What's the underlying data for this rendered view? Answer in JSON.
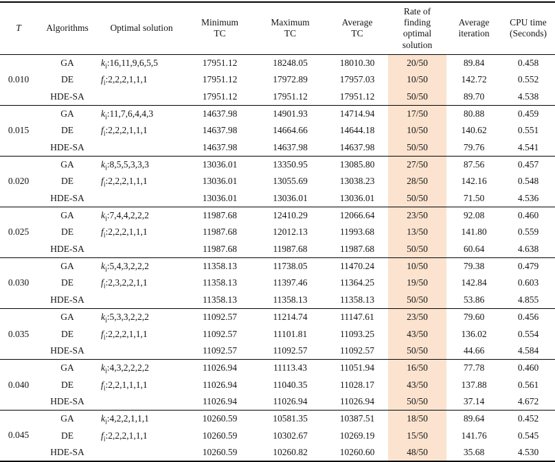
{
  "colors": {
    "highlight": "#fbe3cf",
    "border": "#000000",
    "text": "#141414"
  },
  "header": {
    "columns": [
      {
        "label": "T"
      },
      {
        "label": "Algorithms"
      },
      {
        "label": "Optimal solution"
      },
      {
        "label": "Minimum\nTC"
      },
      {
        "label": "Maximum\nTC"
      },
      {
        "label": "Average\nTC"
      },
      {
        "label": "Rate of\nfinding\noptimal\nsolution"
      },
      {
        "label": "Average\niteration"
      },
      {
        "label": "CPU time\n(Seconds)"
      }
    ]
  },
  "groups": [
    {
      "t": "0.010",
      "rows": [
        {
          "algorithm": "GA",
          "optimal": {
            "var": "k",
            "sub": "i",
            "rest": ":16,11,9,6,5,5"
          },
          "min_tc": "17951.12",
          "max_tc": "18248.05",
          "avg_tc": "18010.30",
          "rate": "20/50",
          "avg_iteration": "89.84",
          "cpu_time": "0.458"
        },
        {
          "algorithm": "DE",
          "optimal": {
            "var": "f",
            "sub": "i",
            "rest": ":2,2,2,1,1,1"
          },
          "min_tc": "17951.12",
          "max_tc": "17972.89",
          "avg_tc": "17957.03",
          "rate": "10/50",
          "avg_iteration": "142.72",
          "cpu_time": "0.552"
        },
        {
          "algorithm": "HDE-SA",
          "optimal": {
            "var": "",
            "sub": "",
            "rest": ""
          },
          "min_tc": "17951.12",
          "max_tc": "17951.12",
          "avg_tc": "17951.12",
          "rate": "50/50",
          "avg_iteration": "89.70",
          "cpu_time": "4.538"
        }
      ]
    },
    {
      "t": "0.015",
      "rows": [
        {
          "algorithm": "GA",
          "optimal": {
            "var": "k",
            "sub": "i",
            "rest": ":11,7,6,4,4,3"
          },
          "min_tc": "14637.98",
          "max_tc": "14901.93",
          "avg_tc": "14714.94",
          "rate": "17/50",
          "avg_iteration": "80.88",
          "cpu_time": "0.459"
        },
        {
          "algorithm": "DE",
          "optimal": {
            "var": "f",
            "sub": "i",
            "rest": ":2,2,2,1,1,1"
          },
          "min_tc": "14637.98",
          "max_tc": "14664.66",
          "avg_tc": "14644.18",
          "rate": "10/50",
          "avg_iteration": "140.62",
          "cpu_time": "0.551"
        },
        {
          "algorithm": "HDE-SA",
          "optimal": {
            "var": "",
            "sub": "",
            "rest": ""
          },
          "min_tc": "14637.98",
          "max_tc": "14637.98",
          "avg_tc": "14637.98",
          "rate": "50/50",
          "avg_iteration": "79.76",
          "cpu_time": "4.541"
        }
      ]
    },
    {
      "t": "0.020",
      "rows": [
        {
          "algorithm": "GA",
          "optimal": {
            "var": "k",
            "sub": "i",
            "rest": ":8,5,5,3,3,3"
          },
          "min_tc": "13036.01",
          "max_tc": "13350.95",
          "avg_tc": "13085.80",
          "rate": "27/50",
          "avg_iteration": "87.56",
          "cpu_time": "0.457"
        },
        {
          "algorithm": "DE",
          "optimal": {
            "var": "f",
            "sub": "i",
            "rest": ":2,2,2,1,1,1"
          },
          "min_tc": "13036.01",
          "max_tc": "13055.69",
          "avg_tc": "13038.23",
          "rate": "28/50",
          "avg_iteration": "142.16",
          "cpu_time": "0.548"
        },
        {
          "algorithm": "HDE-SA",
          "optimal": {
            "var": "",
            "sub": "",
            "rest": ""
          },
          "min_tc": "13036.01",
          "max_tc": "13036.01",
          "avg_tc": "13036.01",
          "rate": "50/50",
          "avg_iteration": "71.50",
          "cpu_time": "4.536"
        }
      ]
    },
    {
      "t": "0.025",
      "rows": [
        {
          "algorithm": "GA",
          "optimal": {
            "var": "k",
            "sub": "i",
            "rest": ":7,4,4,2,2,2"
          },
          "min_tc": "11987.68",
          "max_tc": "12410.29",
          "avg_tc": "12066.64",
          "rate": "23/50",
          "avg_iteration": "92.08",
          "cpu_time": "0.460"
        },
        {
          "algorithm": "DE",
          "optimal": {
            "var": "f",
            "sub": "i",
            "rest": ":2,2,2,1,1,1"
          },
          "min_tc": "11987.68",
          "max_tc": "12012.13",
          "avg_tc": "11993.68",
          "rate": "13/50",
          "avg_iteration": "141.80",
          "cpu_time": "0.559"
        },
        {
          "algorithm": "HDE-SA",
          "optimal": {
            "var": "",
            "sub": "",
            "rest": ""
          },
          "min_tc": "11987.68",
          "max_tc": "11987.68",
          "avg_tc": "11987.68",
          "rate": "50/50",
          "avg_iteration": "60.64",
          "cpu_time": "4.638"
        }
      ]
    },
    {
      "t": "0.030",
      "rows": [
        {
          "algorithm": "GA",
          "optimal": {
            "var": "k",
            "sub": "i",
            "rest": ":5,4,3,2,2,2"
          },
          "min_tc": "11358.13",
          "max_tc": "11738.05",
          "avg_tc": "11470.24",
          "rate": "10/50",
          "avg_iteration": "79.38",
          "cpu_time": "0.479"
        },
        {
          "algorithm": "DE",
          "optimal": {
            "var": "f",
            "sub": "i",
            "rest": ":2,3,2,2,1,1"
          },
          "min_tc": "11358.13",
          "max_tc": "11397.46",
          "avg_tc": "11364.25",
          "rate": "19/50",
          "avg_iteration": "142.84",
          "cpu_time": "0.603"
        },
        {
          "algorithm": "HDE-SA",
          "optimal": {
            "var": "",
            "sub": "",
            "rest": ""
          },
          "min_tc": "11358.13",
          "max_tc": "11358.13",
          "avg_tc": "11358.13",
          "rate": "50/50",
          "avg_iteration": "53.86",
          "cpu_time": "4.855"
        }
      ]
    },
    {
      "t": "0.035",
      "rows": [
        {
          "algorithm": "GA",
          "optimal": {
            "var": "k",
            "sub": "i",
            "rest": ":5,3,3,2,2,2"
          },
          "min_tc": "11092.57",
          "max_tc": "11214.74",
          "avg_tc": "11147.61",
          "rate": "23/50",
          "avg_iteration": "79.60",
          "cpu_time": "0.456"
        },
        {
          "algorithm": "DE",
          "optimal": {
            "var": "f",
            "sub": "i",
            "rest": ":2,2,2,1,1,1"
          },
          "min_tc": "11092.57",
          "max_tc": "11101.81",
          "avg_tc": "11093.25",
          "rate": "43/50",
          "avg_iteration": "136.02",
          "cpu_time": "0.554"
        },
        {
          "algorithm": "HDE-SA",
          "optimal": {
            "var": "",
            "sub": "",
            "rest": ""
          },
          "min_tc": "11092.57",
          "max_tc": "11092.57",
          "avg_tc": "11092.57",
          "rate": "50/50",
          "avg_iteration": "44.66",
          "cpu_time": "4.584"
        }
      ]
    },
    {
      "t": "0.040",
      "rows": [
        {
          "algorithm": "GA",
          "optimal": {
            "var": "k",
            "sub": "i",
            "rest": ":4,3,2,2,2,2"
          },
          "min_tc": "11026.94",
          "max_tc": "11113.43",
          "avg_tc": "11051.94",
          "rate": "16/50",
          "avg_iteration": "77.78",
          "cpu_time": "0.460"
        },
        {
          "algorithm": "DE",
          "optimal": {
            "var": "f",
            "sub": "i",
            "rest": ":2,2,1,1,1,1"
          },
          "min_tc": "11026.94",
          "max_tc": "11040.35",
          "avg_tc": "11028.17",
          "rate": "43/50",
          "avg_iteration": "137.88",
          "cpu_time": "0.561"
        },
        {
          "algorithm": "HDE-SA",
          "optimal": {
            "var": "",
            "sub": "",
            "rest": ""
          },
          "min_tc": "11026.94",
          "max_tc": "11026.94",
          "avg_tc": "11026.94",
          "rate": "50/50",
          "avg_iteration": "37.14",
          "cpu_time": "4.672"
        }
      ]
    },
    {
      "t": "0.045",
      "rows": [
        {
          "algorithm": "GA",
          "optimal": {
            "var": "k",
            "sub": "i",
            "rest": ":4,2,2,1,1,1"
          },
          "min_tc": "10260.59",
          "max_tc": "10581.35",
          "avg_tc": "10387.51",
          "rate": "18/50",
          "avg_iteration": "89.64",
          "cpu_time": "0.452"
        },
        {
          "algorithm": "DE",
          "optimal": {
            "var": "f",
            "sub": "i",
            "rest": ":2,2,2,1,1,1"
          },
          "min_tc": "10260.59",
          "max_tc": "10302.67",
          "avg_tc": "10269.19",
          "rate": "15/50",
          "avg_iteration": "141.76",
          "cpu_time": "0.545"
        },
        {
          "algorithm": "HDE-SA",
          "optimal": {
            "var": "",
            "sub": "",
            "rest": ""
          },
          "min_tc": "10260.59",
          "max_tc": "10260.82",
          "avg_tc": "10260.60",
          "rate": "48/50",
          "avg_iteration": "35.68",
          "cpu_time": "4.530"
        }
      ]
    }
  ]
}
